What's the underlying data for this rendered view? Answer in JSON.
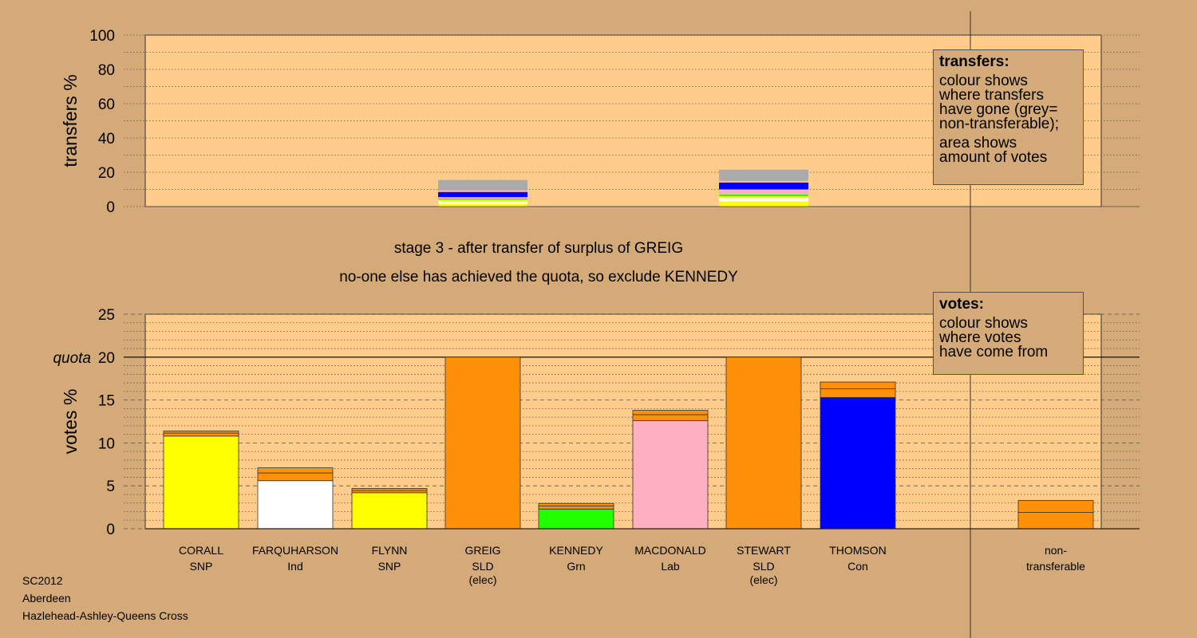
{
  "colors": {
    "background": "#d4aa78",
    "plot_area": "#ffcc8c",
    "SNP": "#ffff00",
    "Ind": "#ffffff",
    "SLD": "#ff9008",
    "Grn": "#22ff00",
    "Lab": "#ffb0c0",
    "Con": "#0000ff",
    "non_transferable": "#aaaaaa"
  },
  "chart_data": [
    {
      "type": "bar",
      "title": "",
      "ylabel": "transfers %",
      "ylim": [
        0,
        100
      ],
      "yticks": [
        0,
        20,
        40,
        60,
        80,
        100
      ],
      "grid": true,
      "description_note": "stacked transfer bars",
      "bars": [
        {
          "category": "GREIG",
          "segments": [
            {
              "party": "SNP",
              "value": 1.5
            },
            {
              "party": "Ind",
              "value": 1.5
            },
            {
              "party": "SNP",
              "value": 1.0
            },
            {
              "party": "Grn",
              "value": 0.7
            },
            {
              "party": "Lab",
              "value": 0.8
            },
            {
              "party": "Con",
              "value": 3.0
            },
            {
              "party": "Lab",
              "value": 1.0
            },
            {
              "party": "non_transferable",
              "value": 6.0
            }
          ]
        },
        {
          "category": "STEWART",
          "segments": [
            {
              "party": "SNP",
              "value": 3.0
            },
            {
              "party": "Ind",
              "value": 2.0
            },
            {
              "party": "SNP",
              "value": 1.0
            },
            {
              "party": "Grn",
              "value": 1.0
            },
            {
              "party": "Lab",
              "value": 3.0
            },
            {
              "party": "Con",
              "value": 4.0
            },
            {
              "party": "Lab",
              "value": 1.0
            },
            {
              "party": "non_transferable",
              "value": 6.5
            }
          ]
        }
      ]
    },
    {
      "type": "bar",
      "title": "",
      "ylabel": "votes %",
      "ylim": [
        0,
        25
      ],
      "yticks": [
        0,
        5,
        10,
        15,
        20,
        25
      ],
      "quota": 20,
      "quota_label": "quota",
      "grid": true,
      "categories": [
        "CORALL",
        "FARQUHARSON",
        "FLYNN",
        "GREIG",
        "KENNEDY",
        "MACDONALD",
        "STEWART",
        "THOMSON",
        "non-transferable"
      ],
      "bars": [
        {
          "name": "CORALL",
          "party": "SNP",
          "note": "",
          "segments": [
            {
              "party": "SNP",
              "value": 10.8
            },
            {
              "party": "SLD",
              "value": 0.35
            },
            {
              "party": "SLD",
              "value": 0.25
            }
          ]
        },
        {
          "name": "FARQUHARSON",
          "party": "Ind",
          "note": "",
          "segments": [
            {
              "party": "Ind",
              "value": 5.6
            },
            {
              "party": "SLD",
              "value": 0.9
            },
            {
              "party": "SLD",
              "value": 0.6
            }
          ]
        },
        {
          "name": "FLYNN",
          "party": "SNP",
          "note": "",
          "segments": [
            {
              "party": "SNP",
              "value": 4.2
            },
            {
              "party": "SLD",
              "value": 0.25
            },
            {
              "party": "SLD",
              "value": 0.25
            }
          ]
        },
        {
          "name": "GREIG",
          "party": "SLD",
          "note": "(elec)",
          "segments": [
            {
              "party": "SLD",
              "value": 20.0
            }
          ]
        },
        {
          "name": "KENNEDY",
          "party": "Grn",
          "note": "",
          "segments": [
            {
              "party": "Grn",
              "value": 2.3
            },
            {
              "party": "SLD",
              "value": 0.35
            },
            {
              "party": "SLD",
              "value": 0.3
            }
          ]
        },
        {
          "name": "MACDONALD",
          "party": "Lab",
          "note": "",
          "segments": [
            {
              "party": "Lab",
              "value": 12.6
            },
            {
              "party": "SLD",
              "value": 0.7
            },
            {
              "party": "SLD",
              "value": 0.5
            }
          ]
        },
        {
          "name": "STEWART",
          "party": "SLD",
          "note": "(elec)",
          "segments": [
            {
              "party": "SLD",
              "value": 20.0
            }
          ]
        },
        {
          "name": "THOMSON",
          "party": "Con",
          "note": "",
          "segments": [
            {
              "party": "Con",
              "value": 15.3
            },
            {
              "party": "SLD",
              "value": 1.0
            },
            {
              "party": "SLD",
              "value": 0.8
            }
          ]
        },
        {
          "name": "non-",
          "party": "transferable",
          "note": "",
          "segments": [
            {
              "party": "SLD",
              "value": 1.9
            },
            {
              "party": "SLD",
              "value": 1.4
            }
          ]
        }
      ]
    }
  ],
  "legend_transfers": {
    "heading": "transfers:",
    "lines1": [
      "colour shows",
      "where transfers",
      "have gone (grey=",
      "non-transferable);"
    ],
    "lines2": [
      "area shows",
      "amount of votes"
    ]
  },
  "legend_votes": {
    "heading": "votes:",
    "lines": [
      "colour shows",
      "where votes",
      "have come from"
    ]
  },
  "stage_text": "stage 3 - after transfer of surplus of GREIG",
  "status_text": "no-one else has achieved the quota, so exclude KENNEDY",
  "footer": [
    "SC2012",
    "Aberdeen",
    "Hazlehead-Ashley-Queens Cross"
  ]
}
